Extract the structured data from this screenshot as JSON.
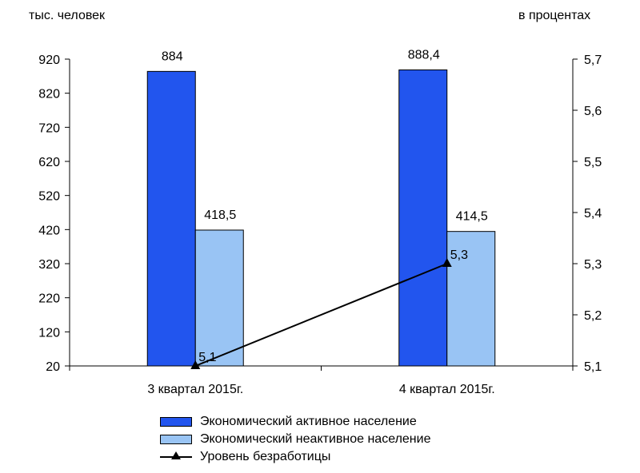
{
  "chart_data": {
    "type": "bar",
    "categories": [
      "3 квартал 2015г.",
      "4 квартал 2015г."
    ],
    "series": [
      {
        "name": "Экономический активное население",
        "values": [
          884,
          888.4
        ],
        "labels": [
          "884",
          "888,4"
        ],
        "axis": "left",
        "color": "#2255ee"
      },
      {
        "name": "Экономический неактивное население",
        "values": [
          418.5,
          414.5
        ],
        "labels": [
          "418,5",
          "414,5"
        ],
        "axis": "left",
        "color": "#99c4f4"
      },
      {
        "name": "Уровень безработицы",
        "values": [
          5.1,
          5.3
        ],
        "labels": [
          "5,1",
          "5,3"
        ],
        "axis": "right",
        "type": "line",
        "color": "#000000"
      }
    ],
    "left_axis": {
      "title": "тыс. человек",
      "ylim": [
        20,
        920
      ],
      "ticks": [
        "20",
        "120",
        "220",
        "320",
        "420",
        "520",
        "620",
        "720",
        "820",
        "920"
      ]
    },
    "right_axis": {
      "title": "в процентах",
      "ylim": [
        5.1,
        5.7
      ],
      "ticks": [
        "5,1",
        "5,2",
        "5,3",
        "5,4",
        "5,5",
        "5,6",
        "5,7"
      ]
    },
    "grid": false,
    "legend_position": "bottom"
  }
}
